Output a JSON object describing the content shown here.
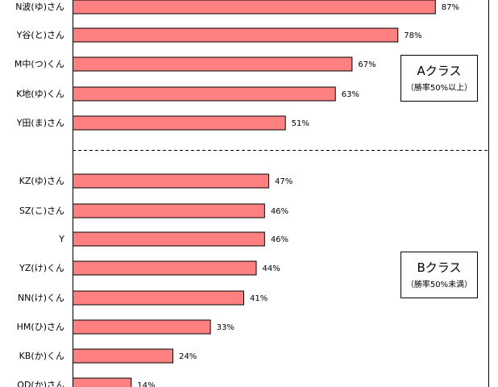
{
  "chart_data": {
    "type": "bar",
    "orientation": "horizontal",
    "categories": [
      "N波(ゆ)さん",
      "Y谷(と)さん",
      "M中(つ)くん",
      "K地(ゆ)くん",
      "Y田(ま)さん",
      "KZ(ゆ)さん",
      "SZ(こ)さん",
      "Y",
      "YZ(け)くん",
      "NN(け)くん",
      "HM(ひ)さん",
      "KB(か)くん",
      "OD(か)さん"
    ],
    "values": [
      87,
      78,
      67,
      63,
      51,
      47,
      46,
      46,
      44,
      41,
      33,
      24,
      14
    ],
    "value_labels": [
      "87%",
      "78%",
      "67%",
      "63%",
      "51%",
      "47%",
      "46%",
      "46%",
      "44%",
      "41%",
      "33%",
      "24%",
      "14%"
    ],
    "xlim": [
      0,
      100
    ],
    "grid": false,
    "bar_color": "#ff8080",
    "groups": [
      {
        "title": "Aクラス",
        "subtitle": "（勝率50%以上）",
        "count": 5
      },
      {
        "title": "Bクラス",
        "subtitle": "（勝率50%未満）",
        "count": 8
      }
    ],
    "group_divider": "dashed"
  }
}
